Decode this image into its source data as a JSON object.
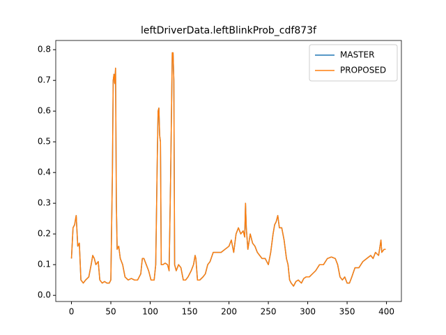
{
  "chart_data": {
    "type": "line",
    "title": "leftDriverData.leftBlinkProb_cdf873f",
    "x": [
      0,
      2,
      4,
      6,
      8,
      10,
      12,
      15,
      18,
      22,
      25,
      27,
      29,
      31,
      34,
      36,
      39,
      42,
      45,
      48,
      50,
      52,
      53,
      54,
      55,
      56,
      57,
      58,
      60,
      62,
      65,
      68,
      72,
      76,
      80,
      84,
      88,
      90,
      92,
      95,
      98,
      101,
      105,
      107,
      109,
      110,
      111,
      112,
      113,
      114,
      116,
      119,
      122,
      124,
      126,
      128,
      129,
      130,
      131,
      133,
      136,
      139,
      142,
      145,
      148,
      152,
      155,
      157,
      158,
      160,
      163,
      167,
      170,
      173,
      176,
      180,
      185,
      190,
      195,
      200,
      203,
      206,
      209,
      212,
      215,
      218,
      220,
      221,
      222,
      224,
      227,
      230,
      233,
      236,
      239,
      242,
      246,
      250,
      253,
      256,
      258,
      260,
      262,
      264,
      267,
      270,
      273,
      275,
      277,
      279,
      282,
      285,
      288,
      292,
      295,
      298,
      302,
      306,
      310,
      315,
      320,
      325,
      330,
      335,
      338,
      341,
      344,
      347,
      350,
      353,
      356,
      360,
      365,
      370,
      375,
      380,
      383,
      386,
      390,
      393,
      394,
      397,
      399
    ],
    "series": [
      {
        "name": "MASTER",
        "color": "#1f77b4",
        "values": [
          0.12,
          0.22,
          0.23,
          0.26,
          0.16,
          0.17,
          0.05,
          0.04,
          0.05,
          0.06,
          0.1,
          0.13,
          0.12,
          0.1,
          0.11,
          0.05,
          0.04,
          0.045,
          0.04,
          0.04,
          0.05,
          0.4,
          0.7,
          0.72,
          0.69,
          0.74,
          0.3,
          0.15,
          0.16,
          0.12,
          0.1,
          0.06,
          0.05,
          0.055,
          0.05,
          0.05,
          0.07,
          0.12,
          0.12,
          0.1,
          0.08,
          0.05,
          0.05,
          0.1,
          0.45,
          0.6,
          0.61,
          0.52,
          0.5,
          0.1,
          0.1,
          0.105,
          0.1,
          0.08,
          0.4,
          0.79,
          0.79,
          0.7,
          0.1,
          0.08,
          0.1,
          0.09,
          0.05,
          0.05,
          0.06,
          0.08,
          0.1,
          0.13,
          0.12,
          0.05,
          0.05,
          0.06,
          0.07,
          0.1,
          0.11,
          0.14,
          0.14,
          0.14,
          0.15,
          0.16,
          0.18,
          0.14,
          0.2,
          0.22,
          0.2,
          0.21,
          0.19,
          0.3,
          0.22,
          0.15,
          0.2,
          0.17,
          0.16,
          0.14,
          0.13,
          0.12,
          0.12,
          0.1,
          0.14,
          0.2,
          0.23,
          0.24,
          0.26,
          0.22,
          0.22,
          0.18,
          0.12,
          0.1,
          0.05,
          0.04,
          0.03,
          0.045,
          0.05,
          0.04,
          0.055,
          0.06,
          0.06,
          0.07,
          0.08,
          0.1,
          0.1,
          0.12,
          0.125,
          0.12,
          0.1,
          0.06,
          0.05,
          0.06,
          0.04,
          0.04,
          0.06,
          0.09,
          0.09,
          0.11,
          0.12,
          0.13,
          0.12,
          0.14,
          0.13,
          0.18,
          0.14,
          0.15,
          0.15
        ]
      },
      {
        "name": "PROPOSED",
        "color": "#ff7f0e",
        "values": [
          0.12,
          0.22,
          0.23,
          0.26,
          0.16,
          0.17,
          0.05,
          0.04,
          0.05,
          0.06,
          0.1,
          0.13,
          0.12,
          0.1,
          0.11,
          0.05,
          0.04,
          0.045,
          0.04,
          0.04,
          0.05,
          0.4,
          0.7,
          0.72,
          0.69,
          0.74,
          0.3,
          0.15,
          0.16,
          0.12,
          0.1,
          0.06,
          0.05,
          0.055,
          0.05,
          0.05,
          0.07,
          0.12,
          0.12,
          0.1,
          0.08,
          0.05,
          0.05,
          0.1,
          0.45,
          0.6,
          0.61,
          0.52,
          0.5,
          0.1,
          0.1,
          0.105,
          0.1,
          0.08,
          0.4,
          0.79,
          0.79,
          0.7,
          0.1,
          0.08,
          0.1,
          0.09,
          0.05,
          0.05,
          0.06,
          0.08,
          0.1,
          0.13,
          0.12,
          0.05,
          0.05,
          0.06,
          0.07,
          0.1,
          0.11,
          0.14,
          0.14,
          0.14,
          0.15,
          0.16,
          0.18,
          0.14,
          0.2,
          0.22,
          0.2,
          0.21,
          0.19,
          0.3,
          0.22,
          0.15,
          0.2,
          0.17,
          0.16,
          0.14,
          0.13,
          0.12,
          0.12,
          0.1,
          0.14,
          0.2,
          0.23,
          0.24,
          0.26,
          0.22,
          0.22,
          0.18,
          0.12,
          0.1,
          0.05,
          0.04,
          0.03,
          0.045,
          0.05,
          0.04,
          0.055,
          0.06,
          0.06,
          0.07,
          0.08,
          0.1,
          0.1,
          0.12,
          0.125,
          0.12,
          0.1,
          0.06,
          0.05,
          0.06,
          0.04,
          0.04,
          0.06,
          0.09,
          0.09,
          0.11,
          0.12,
          0.13,
          0.12,
          0.14,
          0.13,
          0.18,
          0.14,
          0.15,
          0.15
        ]
      }
    ],
    "xlim": [
      -19.95,
      418.95
    ],
    "xticks": [
      0,
      50,
      100,
      150,
      200,
      250,
      300,
      350,
      400
    ],
    "ylim": [
      -0.02,
      0.83
    ],
    "yticks": [
      {
        "value": 0,
        "label": "0.0"
      },
      0.1,
      0.2,
      0.3,
      0.4,
      0.5,
      0.6,
      0.7,
      0.8
    ],
    "legend": "upper right"
  }
}
